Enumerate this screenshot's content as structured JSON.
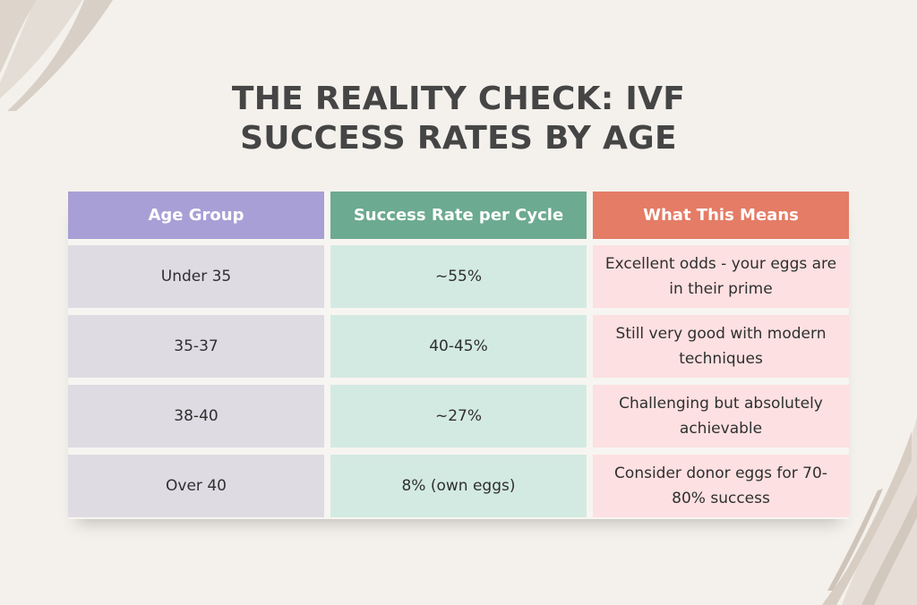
{
  "title": {
    "line1": "THE REALITY CHECK: IVF",
    "line2": "SUCCESS RATES BY AGE"
  },
  "table": {
    "headers": [
      "Age Group",
      "Success Rate per Cycle",
      "What This Means"
    ],
    "rows": [
      [
        "Under 35",
        "~55%",
        "Excellent odds - your eggs are in their prime"
      ],
      [
        "35-37",
        "40-45%",
        "Still very good with modern techniques"
      ],
      [
        "38-40",
        "~27%",
        "Challenging but absolutely achievable"
      ],
      [
        "Over 40",
        "8% (own eggs)",
        "Consider donor eggs for 70-80% success"
      ]
    ]
  },
  "colors": {
    "background": "#f4f1ec",
    "header_age": "#a89fd6",
    "header_rate": "#6caa91",
    "header_meaning": "#e47c66",
    "cell_age": "#dfdbe3",
    "cell_rate": "#d3eae2",
    "cell_meaning": "#fde0e1",
    "decoration": "#d9d0c7"
  }
}
